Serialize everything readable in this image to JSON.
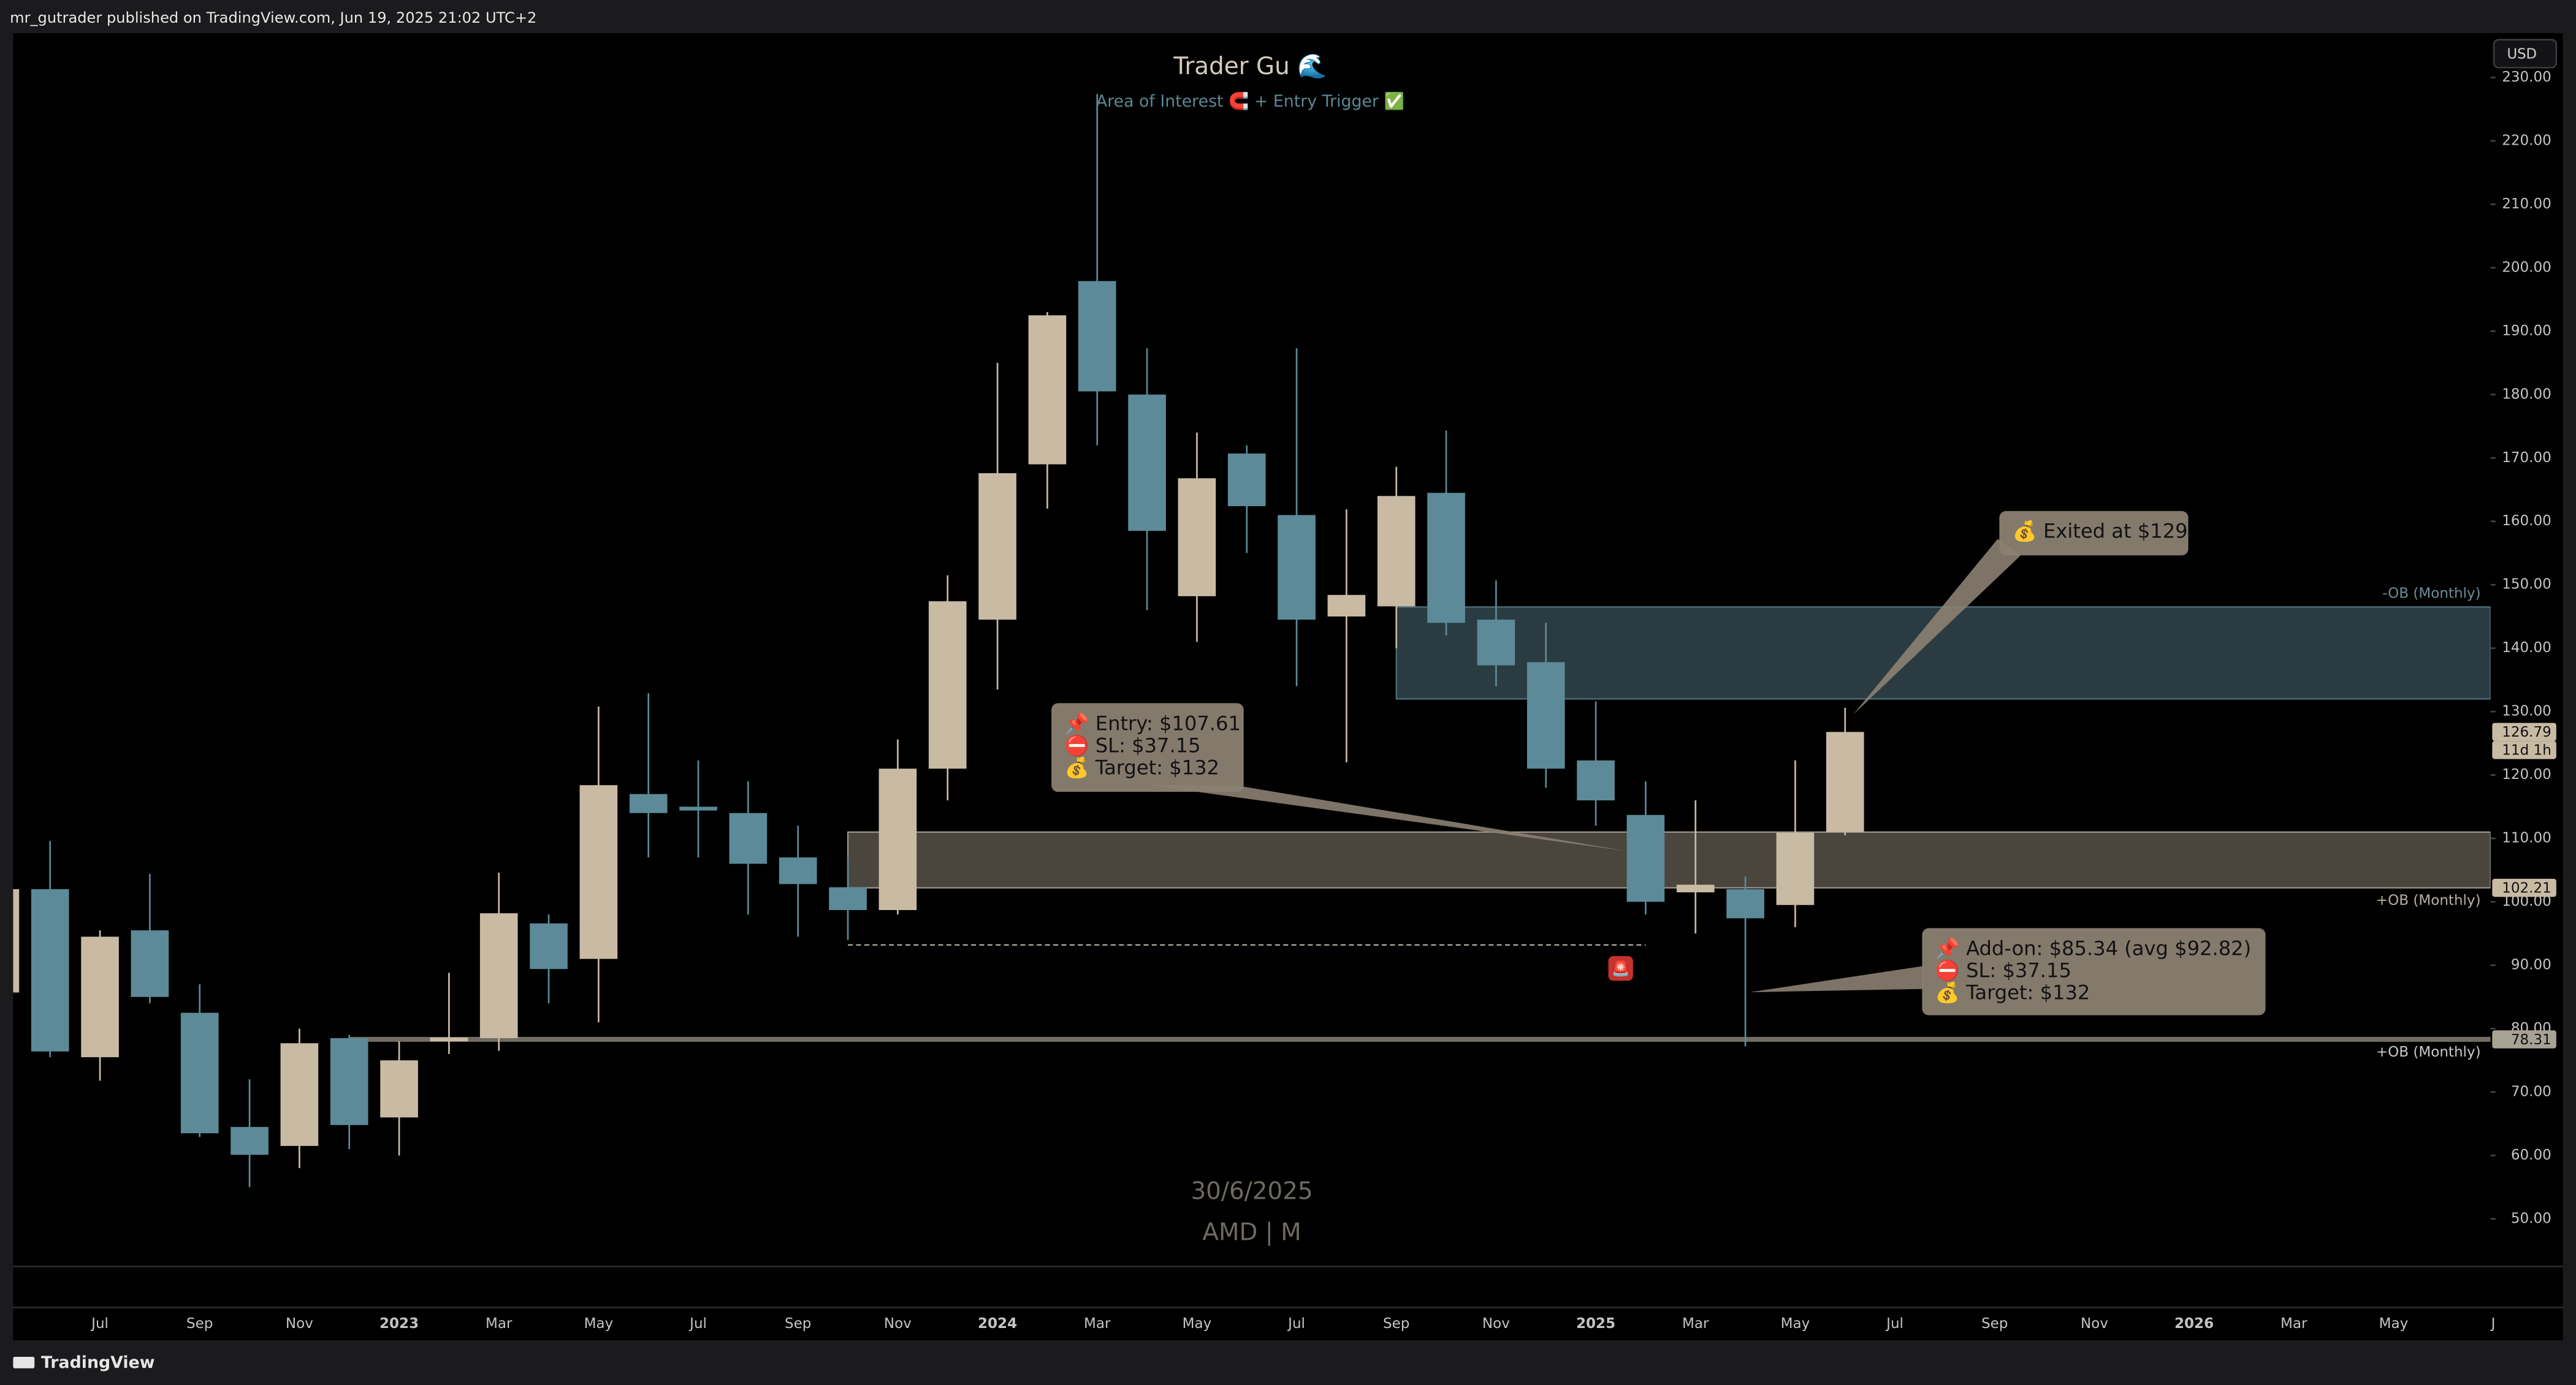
{
  "header": {
    "publisher": "mr_gutrader published on TradingView.com, Jun 19, 2025 21:02 UTC+2"
  },
  "footer": {
    "brand": "TradingView"
  },
  "chart_data": {
    "type": "candlestick",
    "title": "Trader Gu 🌊",
    "subtitle": "Area of Interest 🧲 + Entry Trigger ✅",
    "watermark": [
      "30/6/2025",
      "AMD | M"
    ],
    "currency": "USD",
    "up_color": "#c9baa4",
    "down_color": "#5c8a98",
    "categories": [
      null,
      null,
      "Jul",
      null,
      "Sep",
      null,
      "Nov",
      null,
      "2023",
      null,
      "Mar",
      null,
      "May",
      null,
      "Jul",
      null,
      "Sep",
      null,
      "Nov",
      null,
      "2024",
      null,
      "Mar",
      null,
      "May",
      null,
      "Jul",
      null,
      "Sep",
      null,
      "Nov",
      null,
      "2025",
      null,
      "Mar",
      null,
      "May",
      null,
      "Jul",
      null,
      "Sep",
      null,
      "Nov",
      null,
      "2026",
      null,
      "Mar",
      null,
      "May",
      null,
      "J"
    ],
    "open": [
      85.7,
      102,
      75.5,
      95.5,
      82.5,
      64.5,
      61.5,
      78.5,
      66,
      78,
      78.5,
      96.6,
      91,
      117,
      115,
      114,
      107,
      102.3,
      98.7,
      121,
      144.5,
      169,
      197.9,
      180,
      148.2,
      170.7,
      161,
      145,
      146.6,
      164.5,
      144.5,
      137.8,
      122.3,
      113.7,
      101.5,
      102,
      99.5,
      111,
      null,
      null,
      null,
      null,
      null,
      null,
      null,
      null,
      null,
      null,
      null,
      null,
      null
    ],
    "high": [
      109,
      109.6,
      95.5,
      104.4,
      87,
      72,
      80,
      79,
      78,
      88.8,
      104.6,
      98,
      130.8,
      132.9,
      122.3,
      119,
      112,
      107,
      125.6,
      151.5,
      185,
      193,
      227.4,
      187.3,
      174,
      172,
      187.3,
      161.9,
      168.6,
      174.3,
      150.7,
      144,
      131.6,
      119,
      116,
      104,
      122.3,
      130.6,
      null,
      null,
      null,
      null,
      null,
      null,
      null,
      null,
      null,
      null,
      null,
      null,
      null
    ],
    "low": [
      73,
      75.5,
      71.8,
      84,
      62.9,
      55,
      58,
      61,
      60,
      76,
      76.5,
      84,
      81,
      107,
      107,
      98,
      94.5,
      94,
      98,
      116,
      133.5,
      162,
      172,
      146,
      141,
      155,
      134,
      122,
      140,
      142,
      134,
      118,
      112,
      98,
      95,
      77.2,
      96,
      110.5,
      null,
      null,
      null,
      null,
      null,
      null,
      null,
      null,
      null,
      null,
      null,
      null,
      null
    ],
    "close": [
      102,
      76.4,
      94.5,
      85,
      63.5,
      60.1,
      77.7,
      64.8,
      75,
      78.6,
      98.2,
      89.4,
      118.4,
      114,
      114.4,
      106,
      102.8,
      98.7,
      121,
      147.4,
      167.6,
      192.5,
      180.5,
      158.5,
      166.8,
      162.4,
      144.5,
      148.4,
      164,
      144,
      137.3,
      121,
      116,
      100,
      102.7,
      97.4,
      110.9,
      126.79,
      null,
      null,
      null,
      null,
      null,
      null,
      null,
      null,
      null,
      null,
      null,
      null,
      null
    ],
    "ylim": [
      42.75,
      237
    ],
    "yticks": [
      {
        "value": 50,
        "label": "50.00"
      },
      {
        "value": 60,
        "label": "60.00"
      },
      {
        "value": 70,
        "label": "70.00"
      },
      {
        "value": 80,
        "label": "80.00"
      },
      {
        "value": 90,
        "label": "90.00"
      },
      {
        "value": 100,
        "label": "100.00"
      },
      {
        "value": 110,
        "label": "110.00"
      },
      {
        "value": 120,
        "label": "120.00"
      },
      {
        "value": 130,
        "label": "130.00"
      },
      {
        "value": 140,
        "label": "140.00"
      },
      {
        "value": 150,
        "label": "150.00"
      },
      {
        "value": 160,
        "label": "160.00"
      },
      {
        "value": 170,
        "label": "170.00"
      },
      {
        "value": 180,
        "label": "180.00"
      },
      {
        "value": 190,
        "label": "190.00"
      },
      {
        "value": 200,
        "label": "200.00"
      },
      {
        "value": 210,
        "label": "210.00"
      },
      {
        "value": 220,
        "label": "220.00"
      },
      {
        "value": 230,
        "label": "230.00"
      }
    ],
    "zones": [
      {
        "label": "-OB (Monthly)",
        "low": 132,
        "high": 146.5,
        "start": 28,
        "color": "#2a3c42",
        "edge": "#4f7480",
        "label_color": "#6b8d97",
        "label_side": "top"
      },
      {
        "label": "+OB (Monthly)",
        "low": 102.21,
        "high": 111,
        "start": 17,
        "color": "#4a453d",
        "edge": "#a29a8c",
        "label_color": "#b7b0a4",
        "label_side": "bottom"
      }
    ],
    "levels": [
      {
        "label": "+OB (Monthly)",
        "value": 78.31,
        "start": 7,
        "color": "#8d877c"
      }
    ],
    "dashed_levels": [
      {
        "value": 93.2,
        "start": 17,
        "end": 33,
        "color": "#b8b1a6"
      }
    ],
    "price_labels": [
      {
        "value": 126.79,
        "label": "126.79",
        "color": "#c9baa4"
      },
      {
        "value": 102.21,
        "label": "102.21",
        "color": "#c9baa4"
      },
      {
        "value": 78.31,
        "label": "78.31",
        "color": "#a8a295"
      }
    ],
    "countdown": "11d 1h",
    "annotations": [
      {
        "lines": [
          "📌 Entry: $107.61",
          "⛔ SL: $37.15",
          "💰 Target: $132"
        ]
      },
      {
        "lines": [
          "💰 Exited at $129"
        ]
      },
      {
        "lines": [
          "📌 Add-on: $85.34 (avg $92.82)",
          "⛔ SL: $37.15",
          "💰 Target: $132"
        ]
      }
    ],
    "alert_icon": "🚨"
  }
}
